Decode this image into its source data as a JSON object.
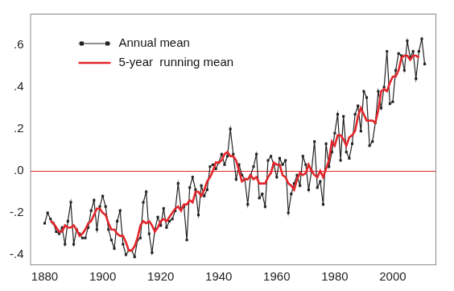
{
  "chart_data": {
    "type": "line",
    "x": [
      1880,
      1881,
      1882,
      1883,
      1884,
      1885,
      1886,
      1887,
      1888,
      1889,
      1890,
      1891,
      1892,
      1893,
      1894,
      1895,
      1896,
      1897,
      1898,
      1899,
      1900,
      1901,
      1902,
      1903,
      1904,
      1905,
      1906,
      1907,
      1908,
      1909,
      1910,
      1911,
      1912,
      1913,
      1914,
      1915,
      1916,
      1917,
      1918,
      1919,
      1920,
      1921,
      1922,
      1923,
      1924,
      1925,
      1926,
      1927,
      1928,
      1929,
      1930,
      1931,
      1932,
      1933,
      1934,
      1935,
      1936,
      1937,
      1938,
      1939,
      1940,
      1941,
      1942,
      1943,
      1944,
      1945,
      1946,
      1947,
      1948,
      1949,
      1950,
      1951,
      1952,
      1953,
      1954,
      1955,
      1956,
      1957,
      1958,
      1959,
      1960,
      1961,
      1962,
      1963,
      1964,
      1965,
      1966,
      1967,
      1968,
      1969,
      1970,
      1971,
      1972,
      1973,
      1974,
      1975,
      1976,
      1977,
      1978,
      1979,
      1980,
      1981,
      1982,
      1983,
      1984,
      1985,
      1986,
      1987,
      1988,
      1989,
      1990,
      1991,
      1992,
      1993,
      1994,
      1995,
      1996,
      1997,
      1998,
      1999,
      2000,
      2001,
      2002,
      2003,
      2004,
      2005,
      2006,
      2007,
      2008,
      2009,
      2010,
      2011
    ],
    "xlim": [
      1875,
      2015
    ],
    "xticks": [
      1880,
      1900,
      1920,
      1940,
      1960,
      1980,
      2000
    ],
    "ylim": [
      -0.45,
      0.75
    ],
    "yticks": [
      {
        "value": -0.4,
        "label": "-.4"
      },
      {
        "value": -0.2,
        "label": "-.2"
      },
      {
        "value": 0,
        "label": ".0"
      },
      {
        "value": 0.2,
        "label": ".2"
      },
      {
        "value": 0.4,
        "label": ".4"
      },
      {
        "value": 0.6,
        "label": ".6"
      }
    ],
    "grid": false,
    "legend": "upper left",
    "series": [
      {
        "name": "Annual mean",
        "color": "#222222",
        "marker": "square",
        "line_style": "solid",
        "values": [
          -0.25,
          -0.2,
          -0.23,
          -0.25,
          -0.29,
          -0.3,
          -0.27,
          -0.35,
          -0.24,
          -0.15,
          -0.35,
          -0.28,
          -0.3,
          -0.32,
          -0.32,
          -0.27,
          -0.19,
          -0.14,
          -0.28,
          -0.17,
          -0.12,
          -0.17,
          -0.28,
          -0.33,
          -0.37,
          -0.24,
          -0.19,
          -0.35,
          -0.4,
          -0.38,
          -0.38,
          -0.41,
          -0.33,
          -0.32,
          -0.15,
          -0.1,
          -0.3,
          -0.39,
          -0.28,
          -0.22,
          -0.26,
          -0.18,
          -0.27,
          -0.24,
          -0.23,
          -0.19,
          -0.06,
          -0.18,
          -0.17,
          -0.33,
          -0.08,
          -0.03,
          -0.09,
          -0.21,
          -0.07,
          -0.12,
          -0.09,
          0.02,
          0.03,
          0.01,
          0.04,
          0.08,
          0.03,
          0.07,
          0.2,
          0.08,
          -0.04,
          0.03,
          -0.02,
          -0.04,
          -0.16,
          -0.02,
          0.02,
          0.08,
          -0.13,
          -0.11,
          -0.17,
          0.05,
          0.07,
          0.03,
          -0.03,
          0.06,
          0.03,
          0.05,
          -0.2,
          -0.11,
          -0.06,
          -0.02,
          -0.07,
          0.07,
          0.03,
          -0.09,
          0.0,
          0.14,
          -0.08,
          -0.05,
          -0.16,
          0.13,
          0.02,
          0.09,
          0.18,
          0.27,
          0.05,
          0.26,
          0.09,
          0.06,
          0.13,
          0.27,
          0.31,
          0.19,
          0.38,
          0.35,
          0.12,
          0.14,
          0.23,
          0.38,
          0.3,
          0.4,
          0.57,
          0.32,
          0.33,
          0.48,
          0.56,
          0.55,
          0.48,
          0.62,
          0.54,
          0.57,
          0.44,
          0.57,
          0.63,
          0.51
        ]
      },
      {
        "name": "5-year  running mean",
        "color": "#e3262b",
        "marker": "none",
        "line_style": "solid",
        "values": [
          null,
          null,
          -0.24,
          -0.25,
          -0.27,
          -0.29,
          -0.29,
          -0.26,
          -0.27,
          -0.27,
          -0.26,
          -0.28,
          -0.31,
          -0.3,
          -0.28,
          -0.25,
          -0.24,
          -0.21,
          -0.18,
          -0.18,
          -0.2,
          -0.21,
          -0.25,
          -0.28,
          -0.28,
          -0.3,
          -0.31,
          -0.31,
          -0.34,
          -0.38,
          -0.38,
          -0.36,
          -0.32,
          -0.26,
          -0.24,
          -0.25,
          -0.24,
          -0.26,
          -0.29,
          -0.27,
          -0.24,
          -0.23,
          -0.24,
          -0.22,
          -0.2,
          -0.18,
          -0.17,
          -0.19,
          -0.16,
          -0.16,
          -0.14,
          -0.15,
          -0.1,
          -0.1,
          -0.12,
          -0.09,
          -0.05,
          -0.03,
          0.0,
          0.04,
          0.04,
          0.05,
          0.08,
          0.09,
          0.07,
          0.07,
          0.05,
          0.0,
          -0.05,
          -0.04,
          -0.04,
          -0.02,
          -0.04,
          -0.03,
          -0.06,
          -0.06,
          -0.06,
          -0.03,
          -0.01,
          0.04,
          0.03,
          0.03,
          -0.02,
          -0.03,
          -0.06,
          -0.07,
          -0.09,
          -0.04,
          -0.01,
          -0.02,
          -0.01,
          0.03,
          0.0,
          -0.02,
          -0.03,
          0.0,
          -0.03,
          0.01,
          0.05,
          0.14,
          0.12,
          0.17,
          0.17,
          0.15,
          0.12,
          0.16,
          0.17,
          0.19,
          0.26,
          0.3,
          0.27,
          0.24,
          0.24,
          0.24,
          0.23,
          0.29,
          0.38,
          0.39,
          0.38,
          0.42,
          0.45,
          0.45,
          0.48,
          0.54,
          0.55,
          0.55,
          0.53,
          0.55,
          0.55,
          0.54,
          null,
          null
        ]
      }
    ]
  }
}
